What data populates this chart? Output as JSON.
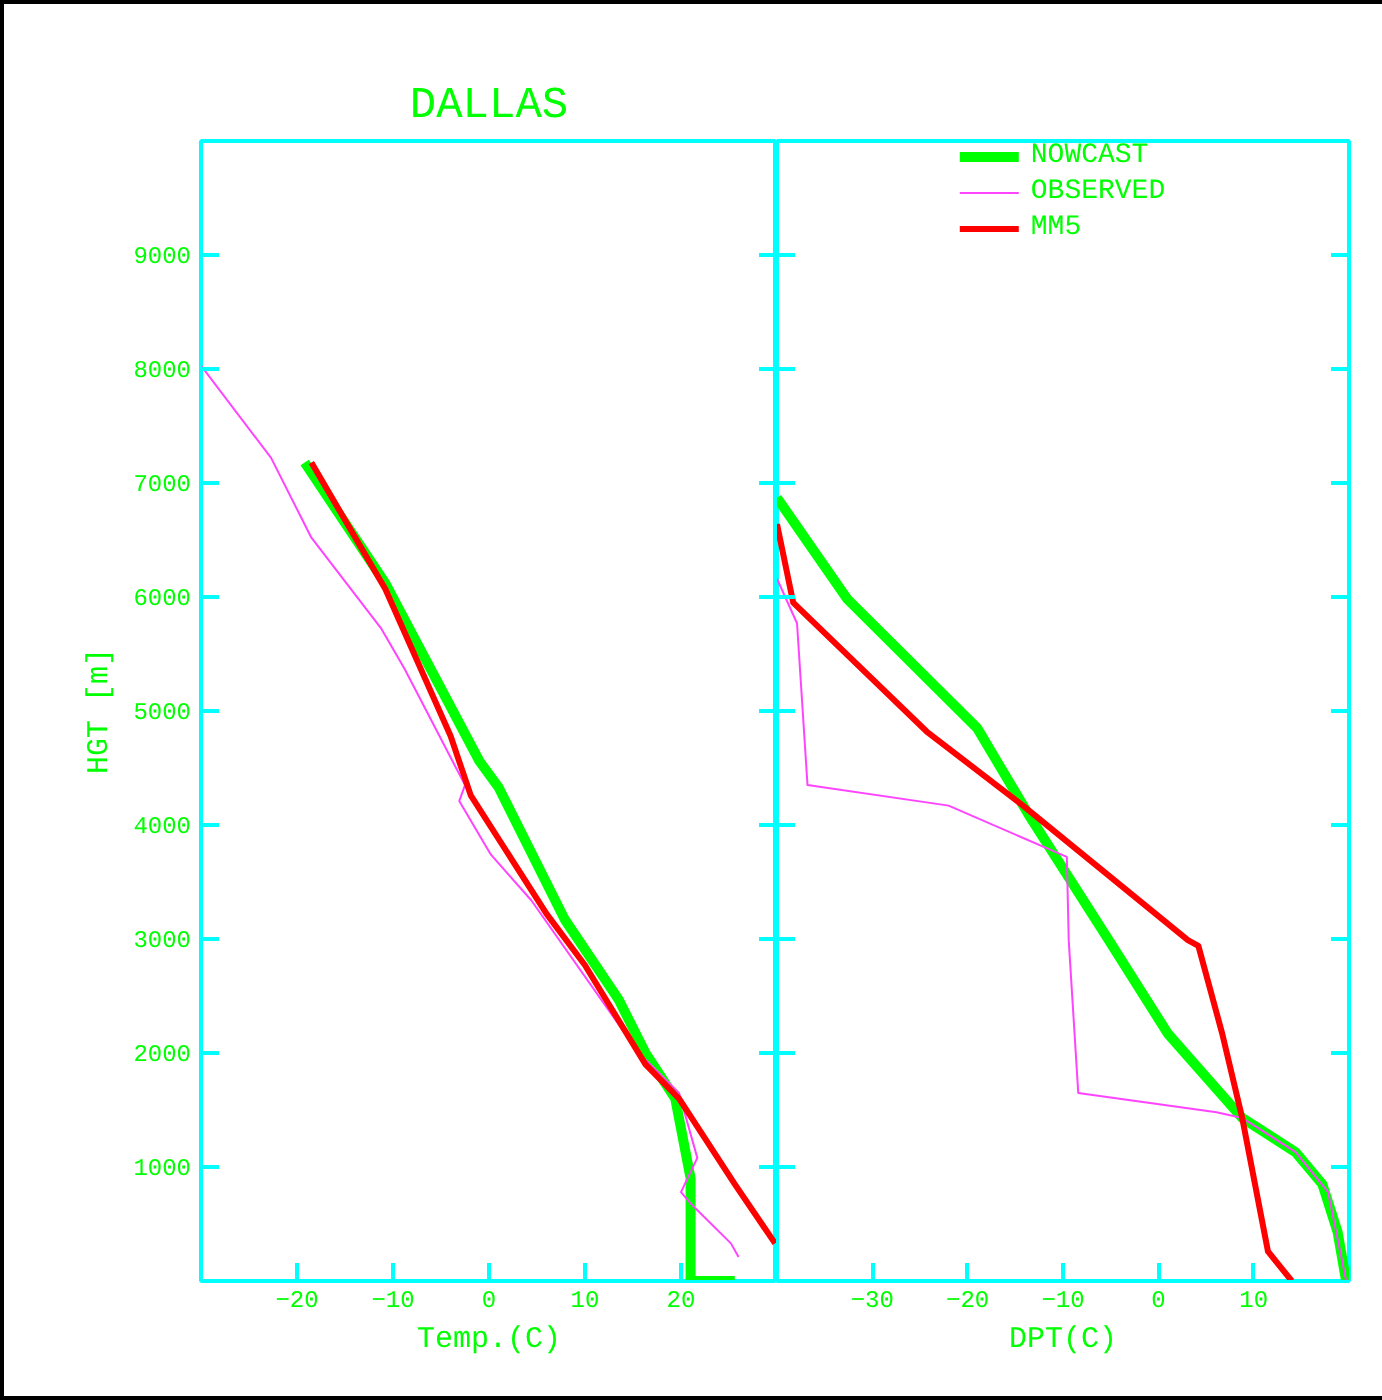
{
  "chart_data": [
    {
      "type": "line",
      "title": "DALLAS",
      "xlabel": "Temp.(C)",
      "ylabel": "HGT [m]",
      "xlim": [
        -30,
        30
      ],
      "ylim": [
        0,
        10000
      ],
      "xticks": [
        -20,
        -10,
        0,
        10,
        20
      ],
      "yticks": [
        1000,
        2000,
        3000,
        4000,
        5000,
        6000,
        7000,
        8000,
        9000
      ],
      "grid": false,
      "series": [
        {
          "color": "#00ff00",
          "x": [
            -19.2,
            -10.8,
            -1,
            1,
            7.9,
            13.5,
            16.3,
            19.4,
            21,
            21,
            25.6
          ],
          "values": [
            7180,
            6120,
            4560,
            4330,
            3170,
            2470,
            2000,
            1600,
            900,
            0,
            0
          ]
        },
        {
          "color": "#ff44ff",
          "x": [
            -30,
            -22.7,
            -18.5,
            -11.2,
            -8.8,
            -2.5,
            -3.1,
            0.2,
            4.4,
            15.6,
            19.8,
            21.7,
            20,
            21,
            25.2,
            26
          ],
          "values": [
            8030,
            7220,
            6520,
            5720,
            5370,
            4350,
            4210,
            3740,
            3340,
            2000,
            1650,
            1080,
            780,
            680,
            330,
            210
          ]
        },
        {
          "color": "#ff0000",
          "x": [
            -18.5,
            -10.8,
            -4,
            -1.9,
            6,
            10,
            16.3,
            19.8,
            25.6,
            29.8
          ],
          "values": [
            7180,
            6070,
            4780,
            4260,
            3220,
            2770,
            1900,
            1600,
            850,
            330
          ]
        }
      ]
    },
    {
      "type": "line",
      "xlabel": "DPT(C)",
      "xlim": [
        -40,
        20
      ],
      "ylim": [
        0,
        10000
      ],
      "xticks": [
        -30,
        -20,
        -10,
        0,
        10
      ],
      "yticks": [
        1000,
        2000,
        3000,
        4000,
        5000,
        6000,
        7000,
        8000,
        9000
      ],
      "tick_labels": "x",
      "grid": false,
      "legend": "top",
      "series": [
        {
          "name": "NOWCAST",
          "color": "#00ff00",
          "x": [
            -40,
            -32.6,
            -19,
            -13.6,
            -5.2,
            1,
            8.8,
            14.4,
            17.2,
            18.8,
            19.7
          ],
          "values": [
            6870,
            5980,
            4850,
            4090,
            2990,
            2170,
            1430,
            1130,
            850,
            430,
            0
          ]
        },
        {
          "name": "OBSERVED",
          "color": "#ff44ff",
          "x": [
            -40,
            -37.9,
            -36.8,
            -22,
            -9.6,
            -9.4,
            -8.4,
            6.1,
            8.8,
            14.4,
            17.8,
            19.7
          ],
          "values": [
            6160,
            5770,
            4350,
            4170,
            3720,
            2990,
            1650,
            1480,
            1430,
            1130,
            780,
            0
          ]
        },
        {
          "name": "MM5",
          "color": "#ff0000",
          "x": [
            -40,
            -38.3,
            -24.3,
            -14.2,
            3.1,
            4.2,
            6.7,
            8.8,
            11.5,
            14
          ],
          "values": [
            6640,
            5950,
            4820,
            4170,
            2990,
            2940,
            2170,
            1430,
            260,
            0
          ]
        }
      ]
    }
  ]
}
